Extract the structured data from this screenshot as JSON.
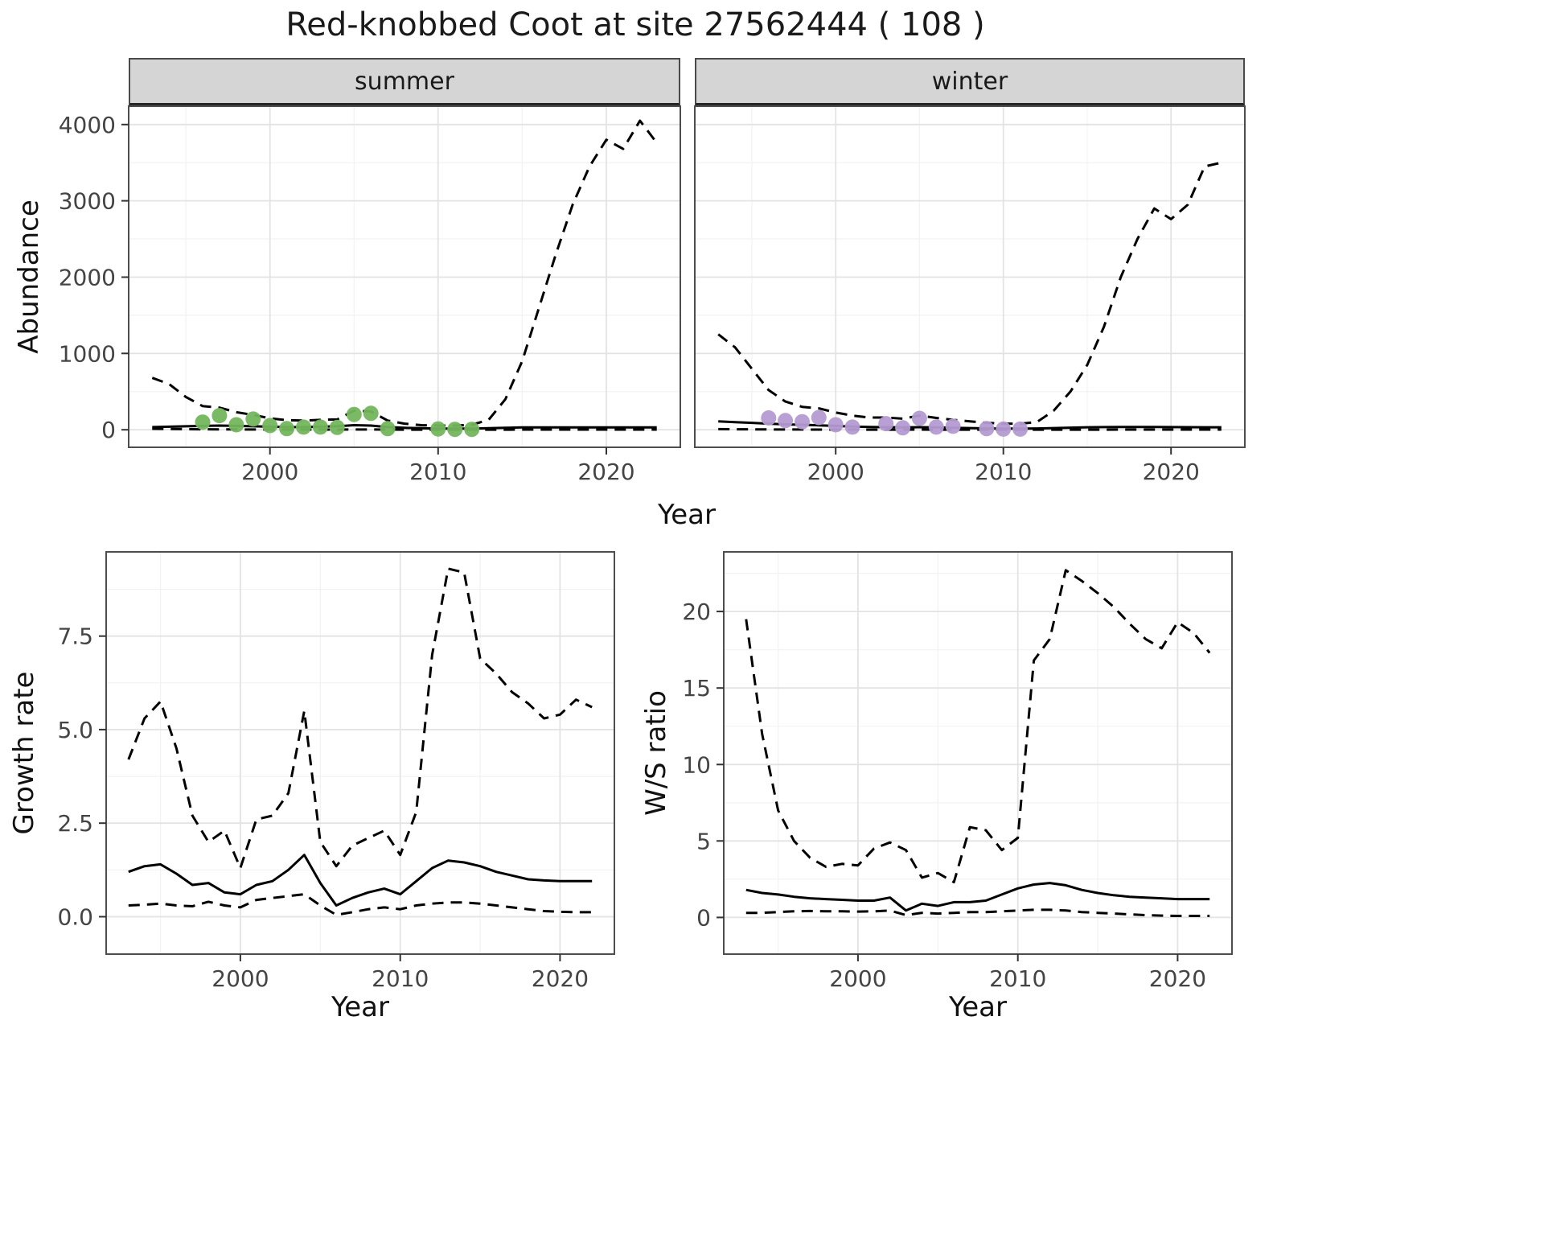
{
  "title": "Red-knobbed Coot at site 27562444 ( 108 )",
  "facets": [
    {
      "label": "summer"
    },
    {
      "label": "winter"
    }
  ],
  "axes": {
    "year": "Year",
    "abundance": "Abundance",
    "growth_rate": "Growth rate",
    "ws_ratio": "W/S ratio"
  },
  "colors": {
    "strip_bg": "#d5d5d5",
    "line": "#000000",
    "summer_points": "#74b65c",
    "winter_points": "#b49bd2",
    "grid_major": "#e3e3e3",
    "grid_minor": "#f2f2f2"
  },
  "chart_data": [
    {
      "id": "abundance_summer",
      "type": "line",
      "title": "summer",
      "xlabel": "Year",
      "ylabel": "Abundance",
      "xlim": [
        1991.6,
        2024.4
      ],
      "ylim": [
        -230,
        4240
      ],
      "x_ticks": [
        2000,
        2010,
        2020
      ],
      "x_tick_labels": [
        "2000",
        "2010",
        "2020"
      ],
      "x_minor": [
        1995,
        2005,
        2015
      ],
      "y_ticks": [
        0,
        1000,
        2000,
        3000,
        4000
      ],
      "y_tick_labels": [
        "0",
        "1000",
        "2000",
        "3000",
        "4000"
      ],
      "y_minor": [
        500,
        1500,
        2500,
        3500
      ],
      "series": [
        {
          "name": "upper_95ci",
          "style": "dashed",
          "x_start": 1993,
          "y": [
            680,
            600,
            430,
            310,
            290,
            230,
            195,
            150,
            125,
            120,
            130,
            135,
            250,
            240,
            120,
            80,
            60,
            55,
            55,
            65,
            130,
            400,
            900,
            1600,
            2300,
            2950,
            3450,
            3800,
            3680,
            4050,
            3760
          ]
        },
        {
          "name": "fitted_median",
          "style": "solid",
          "x_start": 1993,
          "y": [
            35,
            40,
            45,
            50,
            55,
            50,
            45,
            40,
            35,
            35,
            40,
            45,
            60,
            55,
            35,
            25,
            20,
            15,
            15,
            15,
            20,
            25,
            30,
            30,
            30,
            30,
            30,
            30,
            30,
            30,
            30
          ]
        },
        {
          "name": "lower_95ci",
          "style": "dashed",
          "x_start": 1993,
          "y": [
            12,
            10,
            8,
            6,
            5,
            4,
            3,
            3,
            2,
            2,
            2,
            2,
            3,
            3,
            2,
            1,
            1,
            1,
            1,
            1,
            1,
            1,
            2,
            2,
            2,
            2,
            2,
            2,
            2,
            2,
            2
          ]
        }
      ],
      "points": {
        "name": "observed_counts",
        "color": "#74b65c",
        "x": [
          1996,
          1997,
          1998,
          1999,
          2000,
          2001,
          2002,
          2003,
          2004,
          2005,
          2006,
          2007,
          2010,
          2011,
          2012
        ],
        "y": [
          100,
          185,
          65,
          140,
          55,
          15,
          35,
          35,
          30,
          200,
          215,
          15,
          10,
          5,
          5
        ]
      }
    },
    {
      "id": "abundance_winter",
      "type": "line",
      "title": "winter",
      "xlabel": "Year",
      "ylabel": "Abundance",
      "xlim": [
        1991.6,
        2024.4
      ],
      "ylim": [
        -230,
        4240
      ],
      "x_ticks": [
        2000,
        2010,
        2020
      ],
      "x_tick_labels": [
        "2000",
        "2010",
        "2020"
      ],
      "x_minor": [
        1995,
        2005,
        2015
      ],
      "y_ticks": [
        0,
        1000,
        2000,
        3000,
        4000
      ],
      "y_tick_labels": [
        "0",
        "1000",
        "2000",
        "3000",
        "4000"
      ],
      "y_minor": [
        500,
        1500,
        2500,
        3500
      ],
      "series": [
        {
          "name": "upper_95ci",
          "style": "dashed",
          "x_start": 1993,
          "y": [
            1250,
            1080,
            800,
            520,
            370,
            300,
            280,
            225,
            185,
            160,
            160,
            145,
            185,
            155,
            130,
            110,
            90,
            80,
            80,
            100,
            250,
            500,
            850,
            1350,
            2000,
            2500,
            2900,
            2760,
            2950,
            3450,
            3500
          ]
        },
        {
          "name": "fitted_median",
          "style": "solid",
          "x_start": 1993,
          "y": [
            110,
            100,
            90,
            80,
            70,
            65,
            58,
            50,
            42,
            36,
            34,
            30,
            34,
            30,
            26,
            22,
            18,
            16,
            15,
            17,
            22,
            27,
            32,
            35,
            36,
            36,
            36,
            35,
            34,
            33,
            32
          ]
        },
        {
          "name": "lower_95ci",
          "style": "dashed",
          "x_start": 1993,
          "y": [
            8,
            6,
            5,
            4,
            3,
            3,
            2,
            2,
            2,
            1,
            1,
            1,
            2,
            1,
            1,
            1,
            1,
            1,
            1,
            1,
            1,
            1,
            1,
            1,
            2,
            2,
            2,
            2,
            2,
            2,
            2
          ]
        }
      ],
      "points": {
        "name": "observed_counts",
        "color": "#b49bd2",
        "x": [
          1996,
          1997,
          1998,
          1999,
          2000,
          2001,
          2003,
          2004,
          2005,
          2006,
          2007,
          2009,
          2010,
          2011
        ],
        "y": [
          155,
          120,
          105,
          160,
          65,
          35,
          80,
          25,
          150,
          35,
          45,
          15,
          8,
          8
        ]
      }
    },
    {
      "id": "growth_rate",
      "type": "line",
      "title": "Growth rate",
      "xlabel": "Year",
      "ylabel": "Growth rate",
      "xlim": [
        1991.6,
        2023.4
      ],
      "ylim": [
        -1.0,
        9.75
      ],
      "x_ticks": [
        2000,
        2010,
        2020
      ],
      "x_tick_labels": [
        "2000",
        "2010",
        "2020"
      ],
      "x_minor": [
        1995,
        2005,
        2015
      ],
      "y_ticks": [
        0,
        2.5,
        5,
        7.5
      ],
      "y_tick_labels": [
        "0.0",
        "2.5",
        "5.0",
        "7.5"
      ],
      "y_minor": [
        1.25,
        3.75,
        6.25,
        8.75
      ],
      "series": [
        {
          "name": "upper_95ci",
          "style": "dashed",
          "x_start": 1993,
          "y": [
            4.2,
            5.3,
            5.75,
            4.5,
            2.7,
            2.0,
            2.3,
            1.3,
            2.6,
            2.7,
            3.3,
            5.5,
            2.0,
            1.35,
            1.9,
            2.1,
            2.3,
            1.65,
            2.8,
            7.0,
            9.3,
            9.2,
            6.9,
            6.5,
            6.0,
            5.7,
            5.3,
            5.4,
            5.8,
            5.6
          ]
        },
        {
          "name": "fitted_median",
          "style": "solid",
          "x_start": 1993,
          "y": [
            1.2,
            1.35,
            1.4,
            1.15,
            0.85,
            0.9,
            0.65,
            0.6,
            0.85,
            0.95,
            1.25,
            1.65,
            0.9,
            0.3,
            0.5,
            0.65,
            0.75,
            0.6,
            0.95,
            1.3,
            1.5,
            1.45,
            1.35,
            1.2,
            1.1,
            1.0,
            0.97,
            0.95,
            0.95,
            0.95
          ]
        },
        {
          "name": "lower_95ci",
          "style": "dashed",
          "x_start": 1993,
          "y": [
            0.3,
            0.32,
            0.35,
            0.3,
            0.28,
            0.4,
            0.3,
            0.25,
            0.45,
            0.5,
            0.55,
            0.6,
            0.3,
            0.05,
            0.12,
            0.2,
            0.25,
            0.2,
            0.3,
            0.35,
            0.38,
            0.38,
            0.35,
            0.3,
            0.25,
            0.2,
            0.15,
            0.13,
            0.12,
            0.12
          ]
        }
      ],
      "points": null
    },
    {
      "id": "ws_ratio",
      "type": "line",
      "title": "W/S ratio",
      "xlabel": "Year",
      "ylabel": "W/S ratio",
      "xlim": [
        1991.6,
        2023.4
      ],
      "ylim": [
        -2.4,
        23.9
      ],
      "x_ticks": [
        2000,
        2010,
        2020
      ],
      "x_tick_labels": [
        "2000",
        "2010",
        "2020"
      ],
      "x_minor": [
        1995,
        2005,
        2015
      ],
      "y_ticks": [
        0,
        5,
        10,
        15,
        20
      ],
      "y_tick_labels": [
        "0",
        "5",
        "10",
        "15",
        "20"
      ],
      "y_minor": [
        2.5,
        7.5,
        12.5,
        17.5,
        22.5
      ],
      "series": [
        {
          "name": "upper_95ci",
          "style": "dashed",
          "x_start": 1993,
          "y": [
            19.5,
            12.0,
            7.0,
            5.0,
            3.9,
            3.3,
            3.5,
            3.4,
            4.5,
            4.9,
            4.4,
            2.6,
            2.9,
            2.3,
            5.9,
            5.7,
            4.4,
            5.2,
            16.8,
            18.2,
            22.7,
            22.0,
            21.2,
            20.3,
            19.2,
            18.2,
            17.6,
            19.3,
            18.6,
            17.3
          ]
        },
        {
          "name": "fitted_median",
          "style": "solid",
          "x_start": 1993,
          "y": [
            1.8,
            1.6,
            1.5,
            1.35,
            1.25,
            1.2,
            1.15,
            1.1,
            1.1,
            1.3,
            0.45,
            0.9,
            0.75,
            1.0,
            1.0,
            1.1,
            1.5,
            1.9,
            2.15,
            2.25,
            2.1,
            1.8,
            1.6,
            1.45,
            1.35,
            1.3,
            1.25,
            1.2,
            1.2,
            1.2
          ]
        },
        {
          "name": "lower_95ci",
          "style": "dashed",
          "x_start": 1993,
          "y": [
            0.3,
            0.3,
            0.35,
            0.4,
            0.42,
            0.4,
            0.4,
            0.38,
            0.4,
            0.45,
            0.15,
            0.3,
            0.25,
            0.3,
            0.35,
            0.35,
            0.4,
            0.45,
            0.5,
            0.5,
            0.45,
            0.35,
            0.3,
            0.25,
            0.2,
            0.15,
            0.12,
            0.1,
            0.1,
            0.1
          ]
        }
      ],
      "points": null
    }
  ]
}
